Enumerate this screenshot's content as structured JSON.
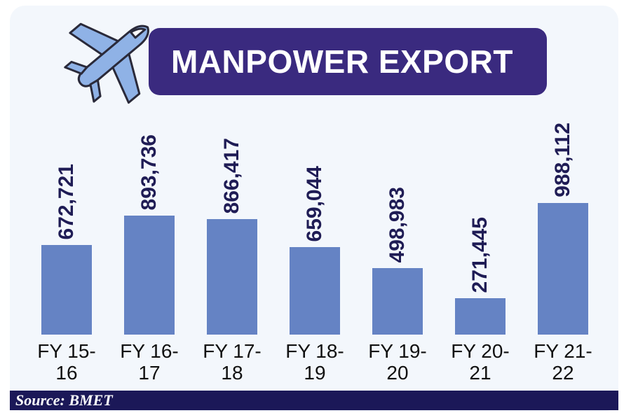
{
  "chart_data": {
    "type": "bar",
    "title": "MANPOWER EXPORT",
    "categories": [
      "FY 15-16",
      "FY 16-17",
      "FY 17-18",
      "FY 18-19",
      "FY 19-20",
      "FY 20-21",
      "FY 21-22"
    ],
    "values": [
      672721,
      893736,
      866417,
      659044,
      498983,
      271445,
      988112
    ],
    "value_labels": [
      "672,721",
      "893,736",
      "866,417",
      "659,044",
      "498,983",
      "271,445",
      "988,112"
    ],
    "color": "#6583c4",
    "source": "Source: BMET"
  }
}
